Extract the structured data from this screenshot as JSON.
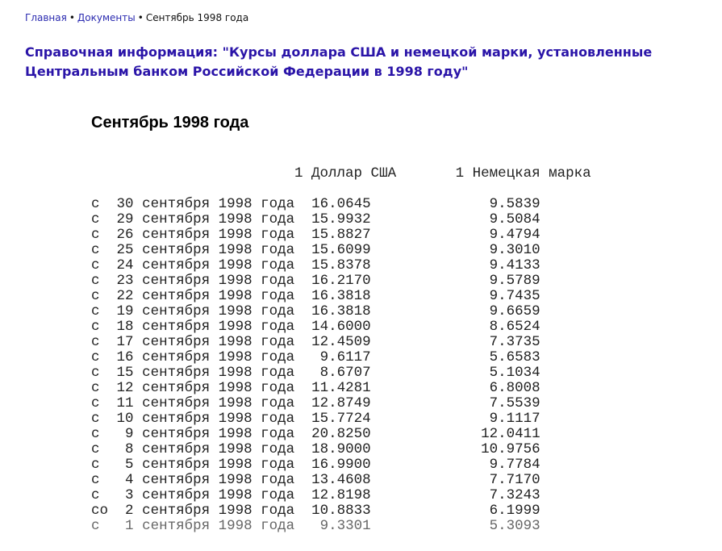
{
  "breadcrumb": {
    "items": [
      "Главная",
      "Документы"
    ],
    "current": "Сентябрь 1998 года"
  },
  "page_title": "Справочная информация: \"Курсы доллара США и немецкой марки, установленные Центральным банком Российской Федерации в 1998 году\"",
  "month_heading": "Сентябрь 1998 года",
  "table": {
    "headers": [
      "1 Доллар США",
      "1 Немецкая марка"
    ],
    "rows": [
      {
        "prefix": "с",
        "day": "30",
        "date": "сентября 1998 года",
        "usd": "16.0645",
        "dem": "9.5839"
      },
      {
        "prefix": "с",
        "day": "29",
        "date": "сентября 1998 года",
        "usd": "15.9932",
        "dem": "9.5084"
      },
      {
        "prefix": "с",
        "day": "26",
        "date": "сентября 1998 года",
        "usd": "15.8827",
        "dem": "9.4794"
      },
      {
        "prefix": "с",
        "day": "25",
        "date": "сентября 1998 года",
        "usd": "15.6099",
        "dem": "9.3010"
      },
      {
        "prefix": "с",
        "day": "24",
        "date": "сентября 1998 года",
        "usd": "15.8378",
        "dem": "9.4133"
      },
      {
        "prefix": "с",
        "day": "23",
        "date": "сентября 1998 года",
        "usd": "16.2170",
        "dem": "9.5789"
      },
      {
        "prefix": "с",
        "day": "22",
        "date": "сентября 1998 года",
        "usd": "16.3818",
        "dem": "9.7435"
      },
      {
        "prefix": "с",
        "day": "19",
        "date": "сентября 1998 года",
        "usd": "16.3818",
        "dem": "9.6659"
      },
      {
        "prefix": "с",
        "day": "18",
        "date": "сентября 1998 года",
        "usd": "14.6000",
        "dem": "8.6524"
      },
      {
        "prefix": "с",
        "day": "17",
        "date": "сентября 1998 года",
        "usd": "12.4509",
        "dem": "7.3735"
      },
      {
        "prefix": "с",
        "day": "16",
        "date": "сентября 1998 года",
        "usd": "9.6117",
        "dem": "5.6583"
      },
      {
        "prefix": "с",
        "day": "15",
        "date": "сентября 1998 года",
        "usd": "8.6707",
        "dem": "5.1034"
      },
      {
        "prefix": "с",
        "day": "12",
        "date": "сентября 1998 года",
        "usd": "11.4281",
        "dem": "6.8008"
      },
      {
        "prefix": "с",
        "day": "11",
        "date": "сентября 1998 года",
        "usd": "12.8749",
        "dem": "7.5539"
      },
      {
        "prefix": "с",
        "day": "10",
        "date": "сентября 1998 года",
        "usd": "15.7724",
        "dem": "9.1117"
      },
      {
        "prefix": "с",
        "day": "9",
        "date": "сентября 1998 года",
        "usd": "20.8250",
        "dem": "12.0411"
      },
      {
        "prefix": "с",
        "day": "8",
        "date": "сентября 1998 года",
        "usd": "18.9000",
        "dem": "10.9756"
      },
      {
        "prefix": "с",
        "day": "5",
        "date": "сентября 1998 года",
        "usd": "16.9900",
        "dem": "9.7784"
      },
      {
        "prefix": "с",
        "day": "4",
        "date": "сентября 1998 года",
        "usd": "13.4608",
        "dem": "7.7170"
      },
      {
        "prefix": "с",
        "day": "3",
        "date": "сентября 1998 года",
        "usd": "12.8198",
        "dem": "7.3243"
      },
      {
        "prefix": "со",
        "day": "2",
        "date": "сентября 1998 года",
        "usd": "10.8833",
        "dem": "6.1999"
      },
      {
        "prefix": "с",
        "day": "1",
        "date": "сентября 1998 года",
        "usd": "9.3301",
        "dem": "5.3093"
      }
    ]
  }
}
